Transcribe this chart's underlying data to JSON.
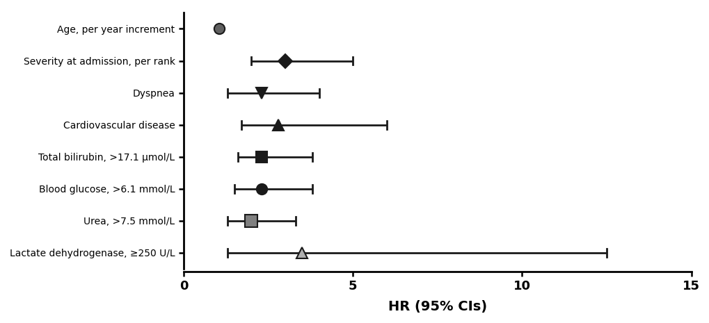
{
  "labels": [
    "Lactate dehydrogenase, ≥250 U/L",
    "Urea, >7.5 mmol/L",
    "Blood glucose, >6.1 mmol/L",
    "Total bilirubin, >17.1 μmol/L",
    "Cardiovascular disease",
    "Dyspnea",
    "Severity at admission, per rank",
    "Age, per year increment"
  ],
  "hr": [
    3.5,
    2.0,
    2.3,
    2.3,
    2.8,
    2.3,
    3.0,
    1.05
  ],
  "ci_low": [
    1.3,
    1.3,
    1.5,
    1.6,
    1.7,
    1.3,
    2.0,
    1.02
  ],
  "ci_high": [
    12.5,
    3.3,
    3.8,
    3.8,
    6.0,
    4.0,
    5.0,
    1.09
  ],
  "markers": [
    "^",
    "s",
    "o",
    "s",
    "^",
    "v",
    "D",
    "o"
  ],
  "marker_colors": [
    "#b0b0b0",
    "#808080",
    "#1a1a1a",
    "#1a1a1a",
    "#1a1a1a",
    "#1a1a1a",
    "#1a1a1a",
    "#606060"
  ],
  "marker_edge_colors": [
    "#1a1a1a",
    "#1a1a1a",
    "#1a1a1a",
    "#1a1a1a",
    "#1a1a1a",
    "#1a1a1a",
    "#1a1a1a",
    "#1a1a1a"
  ],
  "marker_sizes": [
    11,
    13,
    11,
    11,
    11,
    11,
    10,
    11
  ],
  "xlabel": "HR (95% CIs)",
  "xlim": [
    0,
    15
  ],
  "xticks": [
    0,
    5,
    10,
    15
  ],
  "background_color": "#ffffff",
  "line_color": "#1a1a1a",
  "linewidth": 2.0,
  "label_fontsize": 13,
  "xlabel_fontsize": 14
}
